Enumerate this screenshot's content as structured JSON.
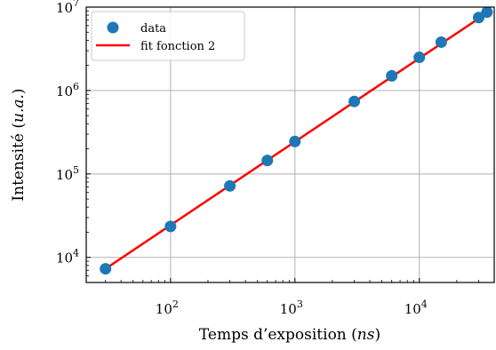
{
  "chart_data": {
    "type": "scatter",
    "xlabel": "Temps d’exposition (ns)",
    "ylabel": "Intensité (u.a.)",
    "xscale": "log",
    "yscale": "log",
    "xlim": [
      21,
      40000
    ],
    "ylim": [
      5000,
      10000000
    ],
    "grid": true,
    "legend_position": "top-left",
    "x_ticks": [
      {
        "base": "10",
        "exp": "2",
        "value": 100
      },
      {
        "base": "10",
        "exp": "3",
        "value": 1000
      },
      {
        "base": "10",
        "exp": "4",
        "value": 10000
      }
    ],
    "y_ticks": [
      {
        "base": "10",
        "exp": "4",
        "value": 10000
      },
      {
        "base": "10",
        "exp": "5",
        "value": 100000
      },
      {
        "base": "10",
        "exp": "6",
        "value": 1000000
      },
      {
        "base": "10",
        "exp": "7",
        "value": 10000000
      }
    ],
    "series": [
      {
        "name": "data",
        "kind": "scatter",
        "color": "#1f77b4",
        "points": [
          {
            "x": 30,
            "y": 7300
          },
          {
            "x": 100,
            "y": 23500
          },
          {
            "x": 300,
            "y": 72000
          },
          {
            "x": 600,
            "y": 145000
          },
          {
            "x": 1000,
            "y": 245000
          },
          {
            "x": 3000,
            "y": 740000
          },
          {
            "x": 6000,
            "y": 1500000
          },
          {
            "x": 10000,
            "y": 2500000
          },
          {
            "x": 15000,
            "y": 3800000
          },
          {
            "x": 30000,
            "y": 7500000
          },
          {
            "x": 35000,
            "y": 8700000
          }
        ]
      },
      {
        "name": "fit fonction 2",
        "kind": "line",
        "color": "#ff0000",
        "points": [
          {
            "x": 30,
            "y": 7300
          },
          {
            "x": 37000,
            "y": 9000000
          }
        ]
      }
    ]
  }
}
